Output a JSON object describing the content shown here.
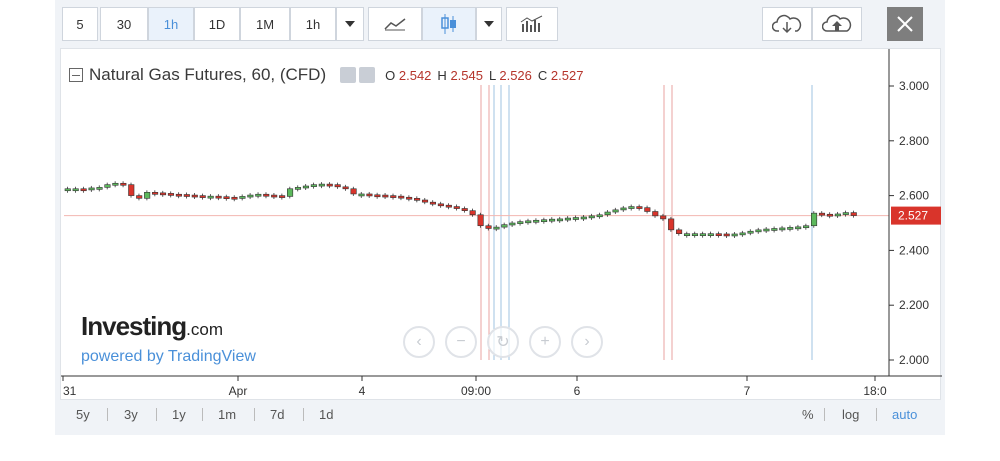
{
  "toolbar": {
    "intervals": [
      "5",
      "30",
      "1h",
      "1D",
      "1M",
      "1h"
    ],
    "active_index": 2
  },
  "legend": {
    "title": "Natural Gas Futures, 60, (CFD)",
    "o_label": "O",
    "o_value": "2.542",
    "h_label": "H",
    "h_value": "2.545",
    "l_label": "L",
    "l_value": "2.526",
    "c_label": "C",
    "c_value": "2.527"
  },
  "price_axis": {
    "ticks": [
      "3.000",
      "2.800",
      "2.600",
      "2.400",
      "2.200",
      "2.000"
    ],
    "tick_values": [
      3.0,
      2.8,
      2.6,
      2.4,
      2.2,
      2.0
    ],
    "last_price": "2.527",
    "last_value": 2.527
  },
  "time_axis": {
    "labels": [
      "31",
      "Apr",
      "4",
      "09:00",
      "6",
      "7",
      "18:0"
    ]
  },
  "brand": {
    "name": "Investing",
    "domain": ".com",
    "powered": "powered by TradingView"
  },
  "ranges": [
    "5y",
    "3y",
    "1y",
    "1m",
    "7d",
    "1d"
  ],
  "options": {
    "percent": "%",
    "log": "log",
    "auto": "auto"
  },
  "colors": {
    "up": "#5cb85c",
    "down": "#d9342b",
    "accent": "#4a90d9",
    "vline_red": "#e8a3a0",
    "vline_blue": "#9fc3e0"
  },
  "chart_data": {
    "type": "candlestick",
    "ylim": [
      1.95,
      3.08
    ],
    "closes": [
      2.625,
      2.625,
      2.624,
      2.628,
      2.63,
      2.64,
      2.645,
      2.64,
      2.6,
      2.59,
      2.612,
      2.61,
      2.608,
      2.605,
      2.604,
      2.602,
      2.6,
      2.598,
      2.598,
      2.596,
      2.594,
      2.593,
      2.597,
      2.602,
      2.605,
      2.602,
      2.6,
      2.597,
      2.625,
      2.63,
      2.635,
      2.64,
      2.642,
      2.64,
      2.632,
      2.625,
      2.606,
      2.606,
      2.603,
      2.602,
      2.6,
      2.598,
      2.594,
      2.59,
      2.584,
      2.576,
      2.57,
      2.565,
      2.56,
      2.553,
      2.545,
      2.53,
      2.49,
      2.48,
      2.485,
      2.494,
      2.5,
      2.505,
      2.508,
      2.51,
      2.512,
      2.514,
      2.515,
      2.518,
      2.52,
      2.522,
      2.526,
      2.53,
      2.54,
      2.548,
      2.555,
      2.56,
      2.556,
      2.542,
      2.526,
      2.515,
      2.475,
      2.461,
      2.461,
      2.461,
      2.461,
      2.461,
      2.46,
      2.459,
      2.46,
      2.464,
      2.47,
      2.475,
      2.478,
      2.48,
      2.482,
      2.484,
      2.486,
      2.49,
      2.536,
      2.532,
      2.527,
      2.533,
      2.538,
      2.527
    ]
  }
}
